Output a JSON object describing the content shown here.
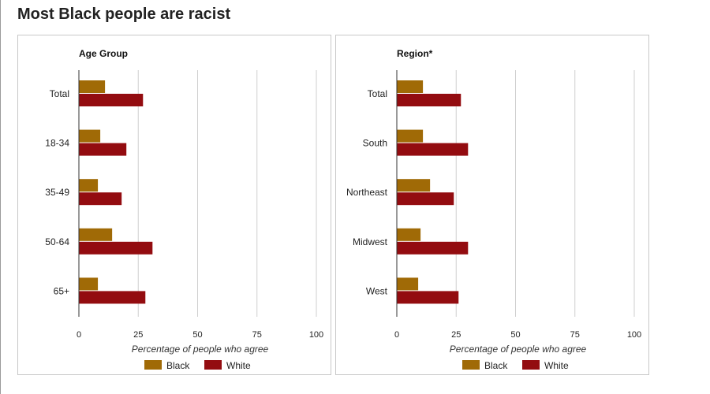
{
  "title": "Most Black people are racist",
  "colors": {
    "Black": "#a06a06",
    "White": "#930c10",
    "grid": "#cfcfcf",
    "axis": "#333333"
  },
  "chart_data": [
    {
      "type": "bar",
      "orientation": "horizontal",
      "title": "Age Group",
      "categories": [
        "Total",
        "18-34",
        "35-49",
        "50-64",
        "65+"
      ],
      "series": [
        {
          "name": "Black",
          "values": [
            11,
            9,
            8,
            14,
            8
          ]
        },
        {
          "name": "White",
          "values": [
            27,
            20,
            18,
            31,
            28
          ]
        }
      ],
      "xlabel": "Percentage of people who agree",
      "xlim": [
        0,
        100
      ],
      "xticks": [
        0,
        25,
        50,
        75,
        100
      ],
      "grid": true,
      "legend": "bottom"
    },
    {
      "type": "bar",
      "orientation": "horizontal",
      "title": "Region*",
      "categories": [
        "Total",
        "South",
        "Northeast",
        "Midwest",
        "West"
      ],
      "series": [
        {
          "name": "Black",
          "values": [
            11,
            11,
            14,
            10,
            9
          ]
        },
        {
          "name": "White",
          "values": [
            27,
            30,
            24,
            30,
            26
          ]
        }
      ],
      "xlabel": "Percentage of people who agree",
      "xlim": [
        0,
        100
      ],
      "xticks": [
        0,
        25,
        50,
        75,
        100
      ],
      "grid": true,
      "legend": "bottom"
    }
  ]
}
